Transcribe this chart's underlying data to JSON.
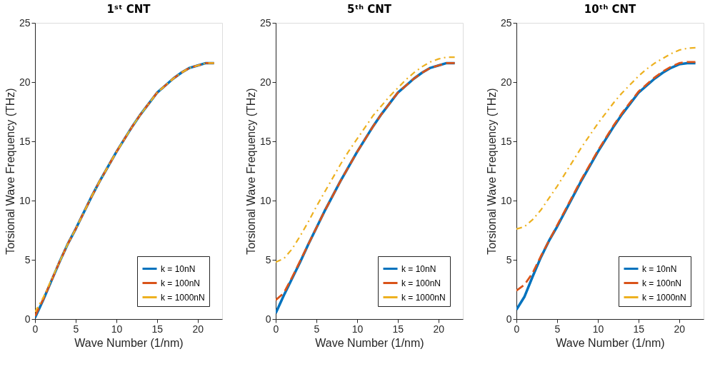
{
  "chart_data": [
    {
      "type": "line",
      "title": "1ˢᵗ CNT",
      "xlabel": "Wave Number (1/nm)",
      "ylabel": "Torsional Wave Frequency (THz)",
      "x": [
        0,
        1,
        2,
        3,
        4,
        5,
        6,
        7,
        8,
        9,
        10,
        11,
        12,
        13,
        14,
        15,
        16,
        17,
        18,
        19,
        20,
        21,
        22
      ],
      "xlim": [
        0,
        23
      ],
      "xticks": [
        0,
        5,
        10,
        15,
        20
      ],
      "ylim": [
        0,
        25
      ],
      "yticks": [
        0,
        5,
        10,
        15,
        20,
        25
      ],
      "grid": false,
      "legend": "bottom right",
      "marker": "none",
      "series": [
        {
          "name": "k = 10nN",
          "color": "#0072bd",
          "line_style": "solid",
          "values": [
            0.1,
            1.6,
            3.2,
            4.8,
            6.3,
            7.6,
            9.0,
            10.4,
            11.7,
            12.9,
            14.1,
            15.2,
            16.3,
            17.3,
            18.2,
            19.1,
            19.7,
            20.3,
            20.8,
            21.2,
            21.4,
            21.6,
            21.6
          ]
        },
        {
          "name": "k = 100nN",
          "color": "#d95319",
          "line_style": "dashed",
          "values": [
            0.25,
            1.65,
            3.2,
            4.8,
            6.3,
            7.6,
            9.0,
            10.4,
            11.7,
            12.9,
            14.1,
            15.2,
            16.3,
            17.3,
            18.2,
            19.1,
            19.7,
            20.3,
            20.8,
            21.2,
            21.4,
            21.6,
            21.6
          ]
        },
        {
          "name": "k = 1000nN",
          "color": "#edb120",
          "line_style": "dotted",
          "values": [
            0.6,
            1.8,
            3.3,
            4.8,
            6.3,
            7.6,
            9.0,
            10.4,
            11.7,
            12.9,
            14.1,
            15.2,
            16.3,
            17.3,
            18.2,
            19.1,
            19.7,
            20.3,
            20.8,
            21.2,
            21.4,
            21.6,
            21.6
          ]
        }
      ]
    },
    {
      "type": "line",
      "title": "5ᵗʰ CNT",
      "xlabel": "Wave Number (1/nm)",
      "ylabel": "Torsional Wave Frequency (THz)",
      "x": [
        0,
        1,
        2,
        3,
        4,
        5,
        6,
        7,
        8,
        9,
        10,
        11,
        12,
        13,
        14,
        15,
        16,
        17,
        18,
        19,
        20,
        21,
        22
      ],
      "xlim": [
        0,
        23
      ],
      "xticks": [
        0,
        5,
        10,
        15,
        20
      ],
      "ylim": [
        0,
        25
      ],
      "yticks": [
        0,
        5,
        10,
        15,
        20,
        25
      ],
      "grid": false,
      "legend": "bottom right",
      "marker": "none",
      "series": [
        {
          "name": "k = 10nN",
          "color": "#0072bd",
          "line_style": "solid",
          "values": [
            0.5,
            2.0,
            3.4,
            4.8,
            6.3,
            7.7,
            9.1,
            10.4,
            11.7,
            12.9,
            14.1,
            15.2,
            16.3,
            17.3,
            18.2,
            19.1,
            19.7,
            20.3,
            20.8,
            21.2,
            21.4,
            21.6,
            21.6
          ]
        },
        {
          "name": "k = 100nN",
          "color": "#d95319",
          "line_style": "dashed",
          "values": [
            1.6,
            2.2,
            3.5,
            4.9,
            6.3,
            7.7,
            9.1,
            10.4,
            11.7,
            12.9,
            14.1,
            15.2,
            16.3,
            17.3,
            18.2,
            19.1,
            19.7,
            20.3,
            20.8,
            21.2,
            21.4,
            21.6,
            21.6
          ]
        },
        {
          "name": "k = 1000nN",
          "color": "#edb120",
          "line_style": "dotted",
          "values": [
            4.8,
            5.1,
            5.9,
            7.0,
            8.2,
            9.5,
            10.7,
            11.9,
            13.1,
            14.2,
            15.2,
            16.2,
            17.2,
            18.0,
            18.8,
            19.5,
            20.2,
            20.8,
            21.3,
            21.7,
            21.95,
            22.1,
            22.1
          ]
        }
      ]
    },
    {
      "type": "line",
      "title": "10ᵗʰ CNT",
      "xlabel": "Wave Number (1/nm)",
      "ylabel": "Torsional Wave Frequency (THz)",
      "x": [
        0,
        1,
        2,
        3,
        4,
        5,
        6,
        7,
        8,
        9,
        10,
        11,
        12,
        13,
        14,
        15,
        16,
        17,
        18,
        19,
        20,
        21,
        22
      ],
      "xlim": [
        0,
        23
      ],
      "xticks": [
        0,
        5,
        10,
        15,
        20
      ],
      "ylim": [
        0,
        25
      ],
      "yticks": [
        0,
        5,
        10,
        15,
        20,
        25
      ],
      "grid": false,
      "legend": "bottom right",
      "marker": "none",
      "series": [
        {
          "name": "k = 10nN",
          "color": "#0072bd",
          "line_style": "solid",
          "values": [
            0.8,
            1.9,
            3.6,
            5.2,
            6.6,
            7.8,
            9.1,
            10.4,
            11.7,
            12.9,
            14.1,
            15.2,
            16.3,
            17.3,
            18.2,
            19.1,
            19.7,
            20.3,
            20.8,
            21.2,
            21.5,
            21.6,
            21.6
          ]
        },
        {
          "name": "k = 100nN",
          "color": "#d95319",
          "line_style": "dashed",
          "values": [
            2.4,
            2.9,
            3.9,
            5.3,
            6.6,
            7.9,
            9.2,
            10.5,
            11.8,
            13.0,
            14.2,
            15.3,
            16.4,
            17.4,
            18.3,
            19.2,
            19.8,
            20.4,
            20.9,
            21.3,
            21.6,
            21.7,
            21.7
          ]
        },
        {
          "name": "k = 1000nN",
          "color": "#edb120",
          "line_style": "dotted",
          "values": [
            7.6,
            7.8,
            8.4,
            9.2,
            10.2,
            11.2,
            12.3,
            13.4,
            14.5,
            15.5,
            16.5,
            17.4,
            18.3,
            19.1,
            19.8,
            20.5,
            21.1,
            21.6,
            22.0,
            22.4,
            22.7,
            22.85,
            22.9
          ]
        }
      ]
    }
  ]
}
